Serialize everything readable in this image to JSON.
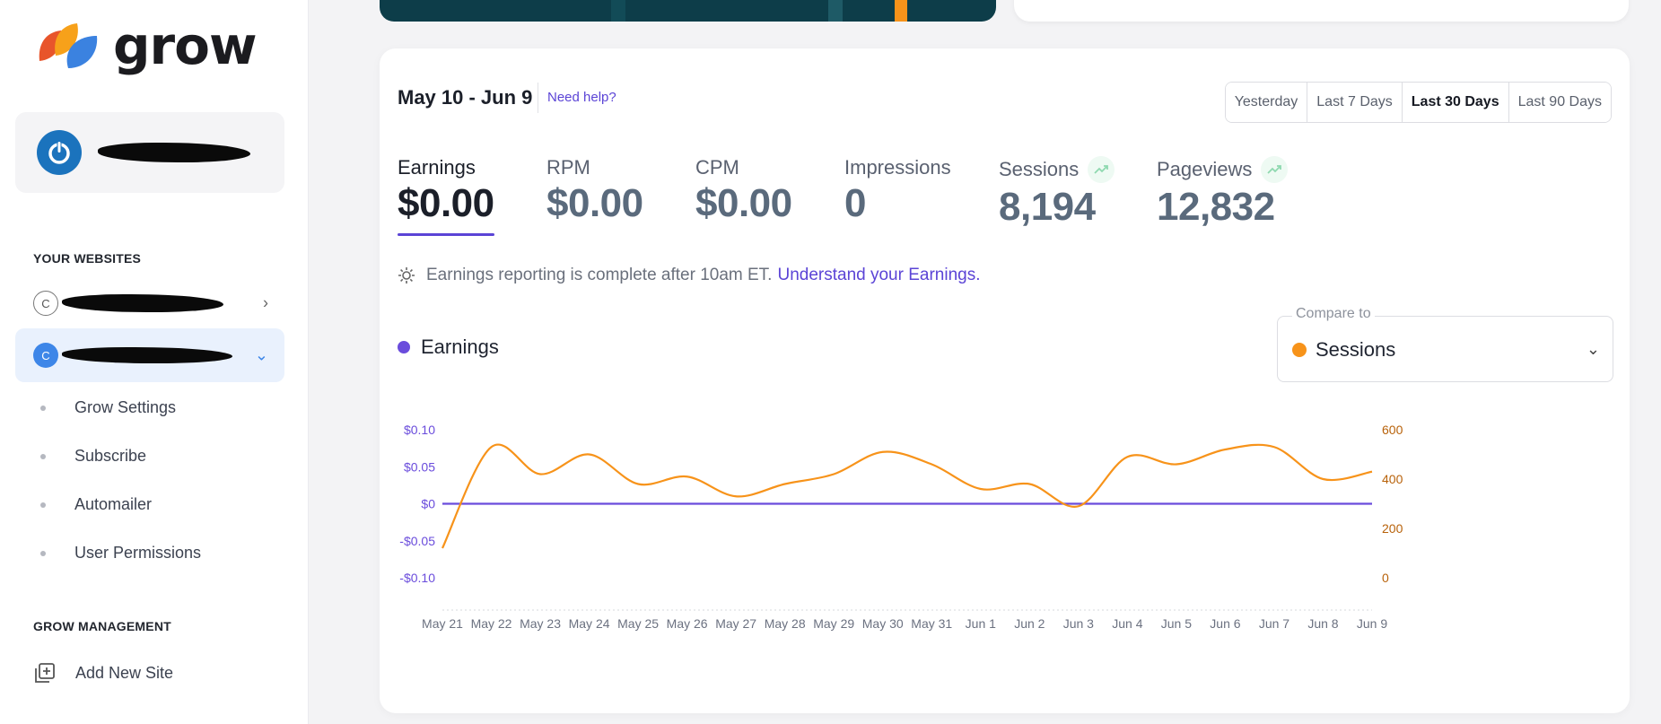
{
  "brand": {
    "name": "grow"
  },
  "sidebar": {
    "your_websites_title": "YOUR WEBSITES",
    "site_badge_1": "C",
    "site_badge_2": "C",
    "sub_items": [
      "Grow Settings",
      "Subscribe",
      "Automailer",
      "User Permissions"
    ],
    "management_title": "GROW MANAGEMENT",
    "add_site_label": "Add New Site"
  },
  "header": {
    "date_range": "May 10 - Jun 9",
    "help_link": "Need help?",
    "range_options": [
      "Yesterday",
      "Last 7 Days",
      "Last 30 Days",
      "Last 90 Days"
    ],
    "selected_range": "Last 30 Days"
  },
  "metrics": [
    {
      "label": "Earnings",
      "value": "$0.00"
    },
    {
      "label": "RPM",
      "value": "$0.00"
    },
    {
      "label": "CPM",
      "value": "$0.00"
    },
    {
      "label": "Impressions",
      "value": "0"
    },
    {
      "label": "Sessions",
      "value": "8,194"
    },
    {
      "label": "Pageviews",
      "value": "12,832"
    }
  ],
  "note": {
    "text": "Earnings reporting is complete after 10am ET.",
    "link": "Understand your Earnings."
  },
  "chart_legend": {
    "primary": "Earnings"
  },
  "compare": {
    "label": "Compare to",
    "value": "Sessions"
  },
  "colors": {
    "accent": "#5b44d6",
    "earnings": "#6a4cdc",
    "sessions": "#f7931a",
    "left_axis": "#6a4cdc",
    "right_axis": "#b8620a"
  },
  "chart_data": {
    "type": "line",
    "x": [
      "May 21",
      "May 22",
      "May 23",
      "May 24",
      "May 25",
      "May 26",
      "May 27",
      "May 28",
      "May 29",
      "May 30",
      "May 31",
      "Jun 1",
      "Jun 2",
      "Jun 3",
      "Jun 4",
      "Jun 5",
      "Jun 6",
      "Jun 7",
      "Jun 8",
      "Jun 9"
    ],
    "series": [
      {
        "name": "Earnings",
        "axis": "left",
        "values": [
          0,
          0,
          0,
          0,
          0,
          0,
          0,
          0,
          0,
          0,
          0,
          0,
          0,
          0,
          0,
          0,
          0,
          0,
          0,
          0
        ]
      },
      {
        "name": "Sessions",
        "axis": "right",
        "values": [
          120,
          530,
          420,
          500,
          380,
          410,
          330,
          380,
          420,
          510,
          460,
          360,
          380,
          290,
          490,
          460,
          520,
          530,
          400,
          430
        ]
      }
    ],
    "left_axis": {
      "ticks": [
        "$0.10",
        "$0.05",
        "$0",
        "-$0.05",
        "-$0.10"
      ],
      "ylim": [
        -0.1,
        0.1
      ]
    },
    "right_axis": {
      "ticks": [
        "600",
        "400",
        "200",
        "0"
      ],
      "ylim": [
        0,
        600
      ]
    },
    "grid": false
  }
}
